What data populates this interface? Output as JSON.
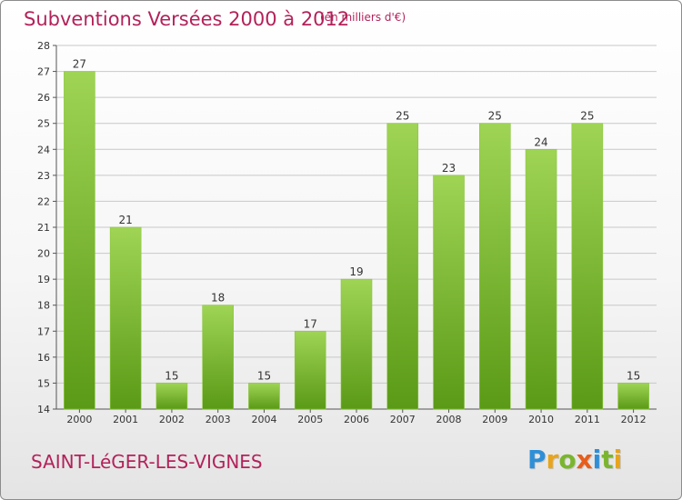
{
  "header": {
    "title": "Subventions Versées 2000 à 2012",
    "subtitle": "(en milliers d'€)"
  },
  "footer": {
    "commune": "SAINT-LéGER-LES-VIGNES",
    "logo_letters": [
      {
        "char": "P",
        "color": "#2f8fd6"
      },
      {
        "char": "r",
        "color": "#e8a51b"
      },
      {
        "char": "o",
        "color": "#7ab62d"
      },
      {
        "char": "x",
        "color": "#e85d1b"
      },
      {
        "char": "i",
        "color": "#2f8fd6"
      },
      {
        "char": "t",
        "color": "#7ab62d"
      },
      {
        "char": "i",
        "color": "#e8a51b"
      }
    ]
  },
  "colors": {
    "title": "#b3225a",
    "bar_light": "#9fd454",
    "bar_dark": "#5a9a16",
    "grid": "#c8c8c8",
    "axis": "#555555"
  },
  "chart_data": {
    "type": "bar",
    "categories": [
      "2000",
      "2001",
      "2002",
      "2003",
      "2004",
      "2005",
      "2006",
      "2007",
      "2008",
      "2009",
      "2010",
      "2011",
      "2012"
    ],
    "values": [
      27,
      21,
      15,
      18,
      15,
      17,
      19,
      25,
      23,
      25,
      24,
      25,
      15
    ],
    "data_labels": [
      "27",
      "21",
      "15",
      "18",
      "15",
      "17",
      "19",
      "25",
      "23",
      "25",
      "24",
      "25",
      "15"
    ],
    "y_ticks": [
      "14",
      "15",
      "16",
      "17",
      "18",
      "19",
      "20",
      "21",
      "22",
      "23",
      "24",
      "25",
      "26",
      "27",
      "28"
    ],
    "ylim": [
      14,
      28
    ],
    "grid": true,
    "title": "Subventions Versées 2000 à 2012",
    "xlabel": "",
    "ylabel": ""
  }
}
